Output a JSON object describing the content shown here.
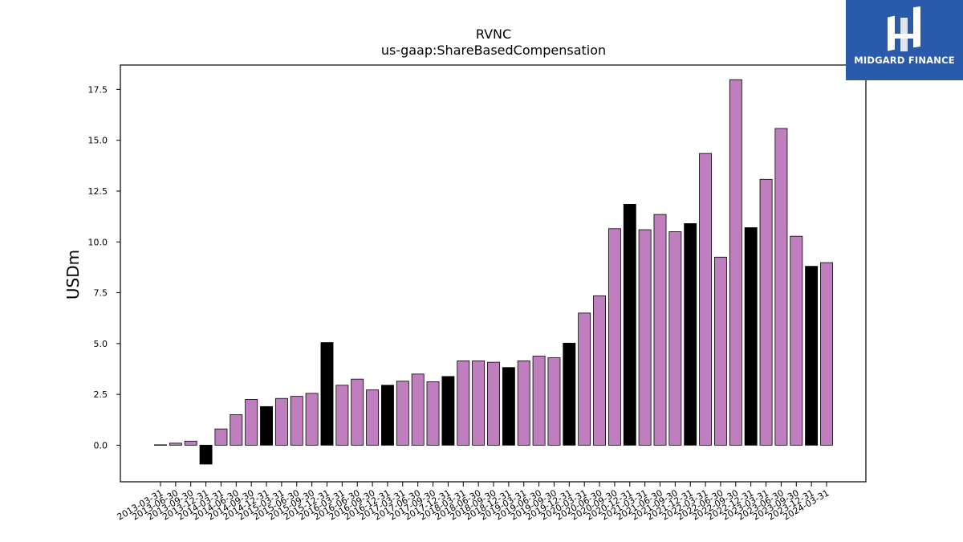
{
  "brand": {
    "name": "MIDGARD FINANCE",
    "background": "#2a5bab"
  },
  "chart_data": {
    "type": "bar",
    "title": "RVNC",
    "subtitle": "us-gaap:ShareBasedCompensation",
    "xlabel": "",
    "ylabel": "USDm",
    "ylim": [
      -1.8,
      18.7
    ],
    "yticks": [
      0.0,
      2.5,
      5.0,
      7.5,
      10.0,
      12.5,
      15.0,
      17.5
    ],
    "ytick_labels": [
      "0.0",
      "2.5",
      "5.0",
      "7.5",
      "10.0",
      "12.5",
      "15.0",
      "17.5"
    ],
    "grid": false,
    "legend": "none",
    "colors": {
      "quarterly": "#bf7fbf",
      "fiscal_year_end": "#000000",
      "edge": "#000000"
    },
    "categories": [
      "2013-03-31",
      "2013-06-30",
      "2013-09-30",
      "2013-12-31",
      "2014-03-31",
      "2014-06-30",
      "2014-09-30",
      "2014-12-31",
      "2015-03-31",
      "2015-06-30",
      "2015-09-30",
      "2015-12-31",
      "2016-03-31",
      "2016-06-30",
      "2016-09-30",
      "2016-12-31",
      "2017-03-31",
      "2017-06-30",
      "2017-09-30",
      "2017-12-31",
      "2018-03-31",
      "2018-06-30",
      "2018-09-30",
      "2018-12-31",
      "2019-03-31",
      "2019-06-30",
      "2019-09-30",
      "2019-12-31",
      "2020-03-31",
      "2020-06-30",
      "2020-09-30",
      "2020-12-31",
      "2021-03-31",
      "2021-06-30",
      "2021-09-30",
      "2021-12-31",
      "2022-03-31",
      "2022-06-30",
      "2022-09-30",
      "2022-12-31",
      "2023-03-31",
      "2023-06-30",
      "2023-09-30",
      "2023-12-31",
      "2024-03-31"
    ],
    "values": [
      0.02,
      0.1,
      0.2,
      -0.93,
      0.8,
      1.5,
      2.25,
      1.9,
      2.3,
      2.4,
      2.55,
      5.05,
      2.95,
      3.25,
      2.72,
      2.95,
      3.15,
      3.5,
      3.12,
      3.38,
      4.15,
      4.15,
      4.08,
      3.82,
      4.15,
      4.38,
      4.3,
      5.02,
      6.5,
      7.35,
      10.65,
      11.85,
      10.6,
      11.35,
      10.5,
      10.9,
      14.35,
      9.25,
      17.98,
      10.7,
      13.08,
      15.58,
      10.28,
      8.8,
      8.98
    ],
    "highlight_indices": [
      3,
      7,
      11,
      15,
      19,
      23,
      27,
      31,
      35,
      39,
      43
    ]
  }
}
